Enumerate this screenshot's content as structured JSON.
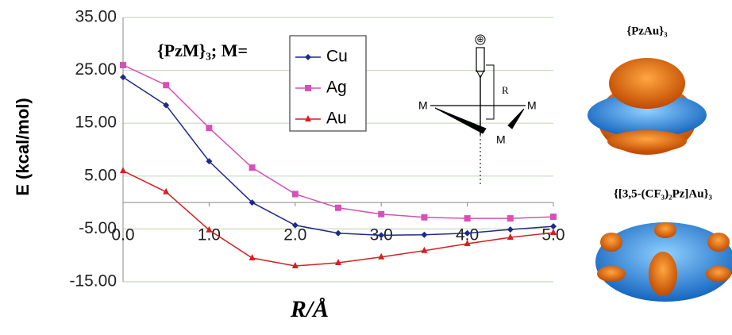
{
  "chart_data": {
    "type": "line",
    "legend_title": "{PzM}₃; M=",
    "x_label": "R/Å",
    "y_label": "E (kcal/mol)",
    "x": [
      0,
      0.5,
      1,
      1.5,
      2,
      2.5,
      3,
      3.5,
      4,
      4.5,
      5
    ],
    "series": [
      {
        "name": "Cu",
        "color": "#1f2a8a",
        "marker": "diamond",
        "values": [
          23.7,
          18.4,
          7.8,
          0,
          -4.3,
          -5.8,
          -6.2,
          -6.1,
          -5.8,
          -5.1,
          -4.5
        ]
      },
      {
        "name": "Ag",
        "color": "#d650b8",
        "marker": "square",
        "values": [
          26,
          22.2,
          14.1,
          6.6,
          1.6,
          -1.0,
          -2.2,
          -2.8,
          -3.0,
          -3.0,
          -2.7
        ]
      },
      {
        "name": "Au",
        "color": "#d42020",
        "marker": "triangle",
        "values": [
          6.0,
          2.0,
          -5.2,
          -10.5,
          -12.0,
          -11.4,
          -10.3,
          -9.1,
          -7.8,
          -6.6,
          -5.7
        ]
      }
    ],
    "xlim": [
      0,
      5
    ],
    "xticks": [
      {
        "value": 0,
        "label": "0.0"
      },
      {
        "value": 1,
        "label": "1.0"
      },
      {
        "value": 2,
        "label": "2.0"
      },
      {
        "value": 3,
        "label": "3.0"
      },
      {
        "value": 4,
        "label": "4.0"
      },
      {
        "value": 5,
        "label": "5.0"
      }
    ],
    "ylim": [
      -15,
      35
    ],
    "yticks": [
      {
        "value": -15,
        "label": "-15.00"
      },
      {
        "value": -5,
        "label": "-5.00"
      },
      {
        "value": 5,
        "label": "5.00"
      },
      {
        "value": 15,
        "label": "15.00"
      },
      {
        "value": 25,
        "label": "25.00"
      },
      {
        "value": 35,
        "label": "35.00"
      }
    ],
    "grid": true,
    "inset": {
      "charge": "⊕",
      "distance": "R",
      "metals": [
        "M",
        "M",
        "M"
      ]
    },
    "images": [
      {
        "title": "{PzAu}₃"
      },
      {
        "title": "{[3,5-(CF₃)₂Pz]Au}₃"
      }
    ]
  }
}
